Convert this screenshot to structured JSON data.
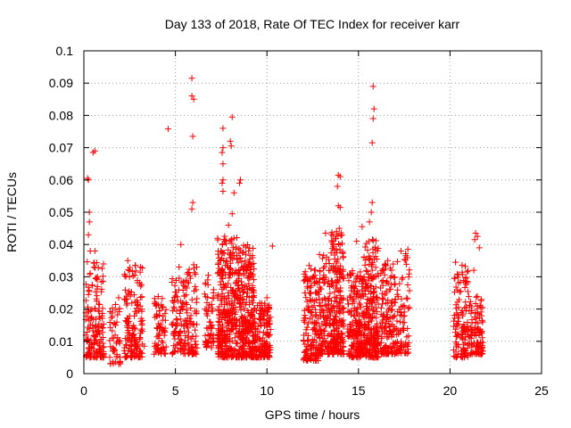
{
  "chart_data": {
    "type": "scatter",
    "title": "Day 133 of 2018, Rate Of TEC Index for receiver karr",
    "xlabel": "GPS time / hours",
    "ylabel": "ROTI / TECUs",
    "xlim": [
      0,
      25
    ],
    "ylim": [
      0,
      0.1
    ],
    "grid": true,
    "marker": "+",
    "color": "#ff0000",
    "x_ticks": [
      0,
      5,
      10,
      15,
      20,
      25
    ],
    "x_tick_labels": [
      "0",
      "5",
      "10",
      "15",
      "20",
      "25"
    ],
    "y_ticks": [
      0,
      0.01,
      0.02,
      0.03,
      0.04,
      0.05,
      0.06,
      0.07,
      0.08,
      0.09,
      0.1
    ],
    "y_tick_labels": [
      "0",
      "0.01",
      "0.02",
      "0.03",
      "0.04",
      "0.05",
      "0.06",
      "0.07",
      "0.08",
      "0.09",
      "0.1"
    ],
    "clusters": [
      {
        "x_start": 0.1,
        "x_end": 1.1,
        "y_min": 0.005,
        "y_max": 0.035,
        "count": 170
      },
      {
        "x_start": 1.4,
        "x_end": 2.0,
        "y_min": 0.003,
        "y_max": 0.022,
        "count": 50
      },
      {
        "x_start": 2.2,
        "x_end": 3.2,
        "y_min": 0.005,
        "y_max": 0.034,
        "count": 150
      },
      {
        "x_start": 3.8,
        "x_end": 4.5,
        "y_min": 0.006,
        "y_max": 0.024,
        "count": 70
      },
      {
        "x_start": 4.8,
        "x_end": 5.6,
        "y_min": 0.006,
        "y_max": 0.03,
        "count": 100
      },
      {
        "x_start": 5.6,
        "x_end": 6.2,
        "y_min": 0.006,
        "y_max": 0.034,
        "count": 80
      },
      {
        "x_start": 6.6,
        "x_end": 7.1,
        "y_min": 0.008,
        "y_max": 0.03,
        "count": 60
      },
      {
        "x_start": 7.3,
        "x_end": 8.4,
        "y_min": 0.005,
        "y_max": 0.043,
        "count": 320
      },
      {
        "x_start": 8.4,
        "x_end": 9.3,
        "y_min": 0.005,
        "y_max": 0.04,
        "count": 280
      },
      {
        "x_start": 9.3,
        "x_end": 10.2,
        "y_min": 0.005,
        "y_max": 0.022,
        "count": 160
      },
      {
        "x_start": 12.0,
        "x_end": 12.8,
        "y_min": 0.004,
        "y_max": 0.033,
        "count": 150
      },
      {
        "x_start": 12.8,
        "x_end": 13.5,
        "y_min": 0.006,
        "y_max": 0.037,
        "count": 140
      },
      {
        "x_start": 13.5,
        "x_end": 14.2,
        "y_min": 0.006,
        "y_max": 0.044,
        "count": 220
      },
      {
        "x_start": 14.4,
        "x_end": 15.3,
        "y_min": 0.005,
        "y_max": 0.032,
        "count": 200
      },
      {
        "x_start": 15.3,
        "x_end": 16.1,
        "y_min": 0.005,
        "y_max": 0.042,
        "count": 230
      },
      {
        "x_start": 16.2,
        "x_end": 17.0,
        "y_min": 0.006,
        "y_max": 0.034,
        "count": 140
      },
      {
        "x_start": 17.0,
        "x_end": 17.8,
        "y_min": 0.006,
        "y_max": 0.038,
        "count": 90
      },
      {
        "x_start": 20.2,
        "x_end": 21.0,
        "y_min": 0.005,
        "y_max": 0.034,
        "count": 120
      },
      {
        "x_start": 21.0,
        "x_end": 21.8,
        "y_min": 0.006,
        "y_max": 0.024,
        "count": 110
      }
    ],
    "outliers": [
      [
        0.2,
        0.0605
      ],
      [
        0.25,
        0.06
      ],
      [
        0.3,
        0.05
      ],
      [
        0.3,
        0.047
      ],
      [
        0.25,
        0.043
      ],
      [
        0.5,
        0.0685
      ],
      [
        0.6,
        0.069
      ],
      [
        0.35,
        0.038
      ],
      [
        0.6,
        0.038
      ],
      [
        4.6,
        0.0758
      ],
      [
        5.9,
        0.0915
      ],
      [
        5.9,
        0.086
      ],
      [
        6.0,
        0.085
      ],
      [
        5.95,
        0.0735
      ],
      [
        5.95,
        0.053
      ],
      [
        5.9,
        0.051
      ],
      [
        5.3,
        0.04
      ],
      [
        7.6,
        0.076
      ],
      [
        7.6,
        0.07
      ],
      [
        7.55,
        0.0685
      ],
      [
        7.6,
        0.065
      ],
      [
        7.6,
        0.06
      ],
      [
        7.55,
        0.059
      ],
      [
        7.6,
        0.0565
      ],
      [
        8.1,
        0.0795
      ],
      [
        8.0,
        0.072
      ],
      [
        8.05,
        0.0705
      ],
      [
        8.55,
        0.06
      ],
      [
        8.5,
        0.059
      ],
      [
        8.2,
        0.056
      ],
      [
        8.1,
        0.0495
      ],
      [
        7.9,
        0.046
      ],
      [
        10.3,
        0.0395
      ],
      [
        13.9,
        0.0615
      ],
      [
        14.0,
        0.061
      ],
      [
        13.85,
        0.058
      ],
      [
        13.9,
        0.052
      ],
      [
        14.0,
        0.0515
      ],
      [
        13.95,
        0.045
      ],
      [
        13.8,
        0.044
      ],
      [
        13.2,
        0.0435
      ],
      [
        15.8,
        0.089
      ],
      [
        15.85,
        0.082
      ],
      [
        15.8,
        0.079
      ],
      [
        15.75,
        0.0715
      ],
      [
        15.75,
        0.053
      ],
      [
        15.7,
        0.05
      ],
      [
        15.6,
        0.047
      ],
      [
        15.2,
        0.0455
      ],
      [
        14.9,
        0.041
      ],
      [
        21.4,
        0.0435
      ],
      [
        21.5,
        0.0425
      ],
      [
        21.35,
        0.0415
      ],
      [
        21.6,
        0.039
      ],
      [
        21.3,
        0.032
      ],
      [
        1.9,
        0.0235
      ],
      [
        2.4,
        0.035
      ],
      [
        3.1,
        0.033
      ],
      [
        5.2,
        0.033
      ],
      [
        6.8,
        0.0305
      ],
      [
        9.0,
        0.038
      ],
      [
        10.0,
        0.0235
      ],
      [
        12.3,
        0.0335
      ],
      [
        16.6,
        0.035
      ],
      [
        17.7,
        0.0385
      ],
      [
        20.3,
        0.0345
      ],
      [
        1.9,
        0.003
      ],
      [
        3.3,
        0.0085
      ]
    ]
  }
}
